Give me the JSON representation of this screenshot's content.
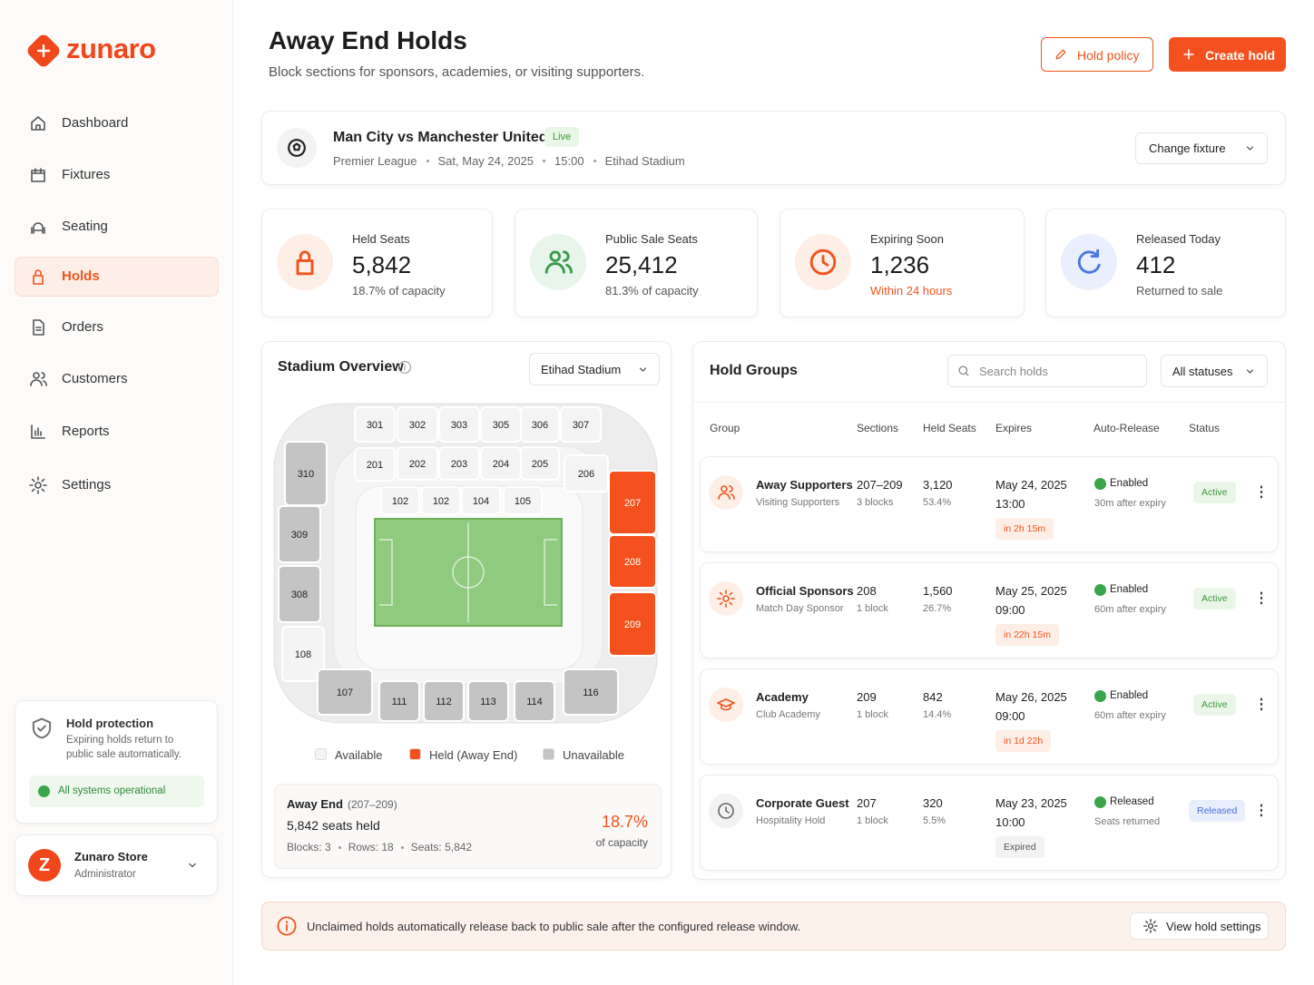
{
  "brand": "zunaro",
  "nav": [
    "Dashboard",
    "Fixtures",
    "Seating",
    "Holds",
    "Orders",
    "Customers",
    "Reports",
    "Settings"
  ],
  "nav_active": 3,
  "protection": {
    "title": "Hold protection",
    "text": [
      "Expiring holds return to",
      "public sale automatically."
    ],
    "status": "All systems operational"
  },
  "user": {
    "initial": "Z",
    "name": "Zunaro Store",
    "role": "Administrator"
  },
  "header": {
    "title": "Away End Holds",
    "subtitle": "Block sections for sponsors, academies, or visiting supporters.",
    "secondary": "Hold policy",
    "primary": "Create hold"
  },
  "fixture": {
    "name": "Man City vs Manchester United",
    "badge": "Live",
    "meta": [
      "Premier League",
      "Sat, May 24, 2025",
      "15:00",
      "Etihad Stadium"
    ],
    "action": "Change fixture"
  },
  "stats": [
    {
      "label": "Held Seats",
      "value": "5,842",
      "note": "18.7% of capacity",
      "color": "#f0541e",
      "bg": "#fdeee6",
      "note_color": "#555"
    },
    {
      "label": "Public Sale Seats",
      "value": "25,412",
      "note": "81.3% of capacity",
      "color": "#3a9a4a",
      "bg": "#e8f5ea",
      "note_color": "#555"
    },
    {
      "label": "Expiring Soon",
      "value": "1,236",
      "note": "Within 24 hours",
      "color": "#f0541e",
      "bg": "#fdeee6",
      "note_color": "#f0541e"
    },
    {
      "label": "Released Today",
      "value": "412",
      "note": "Returned to sale",
      "color": "#4a78e0",
      "bg": "#e9effc",
      "note_color": "#555"
    }
  ],
  "stadium": {
    "title": "Stadium Overview",
    "select": "Etihad Stadium",
    "sections": [
      {
        "label": "301",
        "state": "available"
      },
      {
        "label": "302",
        "state": "available"
      },
      {
        "label": "303",
        "state": "available"
      },
      {
        "label": "305",
        "state": "available"
      },
      {
        "label": "306",
        "state": "available"
      },
      {
        "label": "307",
        "state": "available"
      },
      {
        "label": "310",
        "state": "unavailable"
      },
      {
        "label": "201",
        "state": "available"
      },
      {
        "label": "202",
        "state": "available"
      },
      {
        "label": "203",
        "state": "available"
      },
      {
        "label": "204",
        "state": "available"
      },
      {
        "label": "205",
        "state": "available"
      },
      {
        "label": "206",
        "state": "available"
      },
      {
        "label": "102",
        "state": "available"
      },
      {
        "label": "102",
        "state": "available"
      },
      {
        "label": "104",
        "state": "available"
      },
      {
        "label": "105",
        "state": "available"
      },
      {
        "label": "207",
        "state": "held"
      },
      {
        "label": "208",
        "state": "held"
      },
      {
        "label": "209",
        "state": "held"
      },
      {
        "label": "309",
        "state": "unavailable"
      },
      {
        "label": "308",
        "state": "unavailable"
      },
      {
        "label": "108",
        "state": "available"
      },
      {
        "label": "107",
        "state": "unavailable"
      },
      {
        "label": "111",
        "state": "unavailable"
      },
      {
        "label": "112",
        "state": "unavailable"
      },
      {
        "label": "113",
        "state": "unavailable"
      },
      {
        "label": "114",
        "state": "unavailable"
      },
      {
        "label": "116",
        "state": "unavailable"
      }
    ],
    "colors": {
      "available": "#f4f4f4",
      "held": "#f4511e",
      "unavailable": "#c4c4c4"
    },
    "legend": [
      {
        "label": "Available",
        "state": "available"
      },
      {
        "label": "Held (Away End)",
        "state": "held"
      },
      {
        "label": "Unavailable",
        "state": "unavailable"
      }
    ],
    "summary": {
      "title": "Away End",
      "range": "(207–209)",
      "seats": "5,842 seats held",
      "meta": [
        "Blocks: 3",
        "Rows: 18",
        "Seats: 5,842"
      ],
      "pct": "18.7%",
      "pct_label": "of capacity"
    }
  },
  "holds": {
    "title": "Hold Groups",
    "search": "Search holds",
    "filter": "All statuses",
    "columns": [
      "Group",
      "Sections",
      "Held Seats",
      "Expires",
      "Auto-Release",
      "Status"
    ],
    "rows": [
      {
        "group": "Away Supporters",
        "type": "Visiting Supporters",
        "sections": "207–209",
        "blocks": "3 blocks",
        "seats": "3,120",
        "share": "53.4%",
        "date": "May 24, 2025",
        "time": "13:00",
        "countdown": "in 2h 15m",
        "auto": "Enabled",
        "auto_note": "30m after expiry",
        "status": "Active",
        "icon_color": "#f0541e",
        "countdown_color": "#f0541e",
        "status_color": "#3c9a3c"
      },
      {
        "group": "Official Sponsors",
        "type": "Match Day Sponsor",
        "sections": "208",
        "blocks": "1 block",
        "seats": "1,560",
        "share": "26.7%",
        "date": "May 25, 2025",
        "time": "09:00",
        "countdown": "in 22h 15m",
        "auto": "Enabled",
        "auto_note": "60m after expiry",
        "status": "Active",
        "icon_color": "#f0541e",
        "countdown_color": "#f0541e",
        "status_color": "#3c9a3c"
      },
      {
        "group": "Academy",
        "type": "Club Academy",
        "sections": "209",
        "blocks": "1 block",
        "seats": "842",
        "share": "14.4%",
        "date": "May 26, 2025",
        "time": "09:00",
        "countdown": "in 1d 22h",
        "auto": "Enabled",
        "auto_note": "60m after expiry",
        "status": "Active",
        "icon_color": "#f0541e",
        "countdown_color": "#f0541e",
        "status_color": "#3c9a3c"
      },
      {
        "group": "Corporate Guest",
        "type": "Hospitality Hold",
        "sections": "207",
        "blocks": "1 block",
        "seats": "320",
        "share": "5.5%",
        "date": "May 23, 2025",
        "time": "10:00",
        "countdown": "Expired",
        "auto": "Released",
        "auto_note": "Seats returned",
        "status": "Released",
        "icon_color": "#666666",
        "countdown_color": "#555555",
        "status_color": "#4a6fd8"
      }
    ]
  },
  "notice": {
    "text": "Unclaimed holds automatically release back to public sale after the configured release window.",
    "action": "View hold settings"
  }
}
